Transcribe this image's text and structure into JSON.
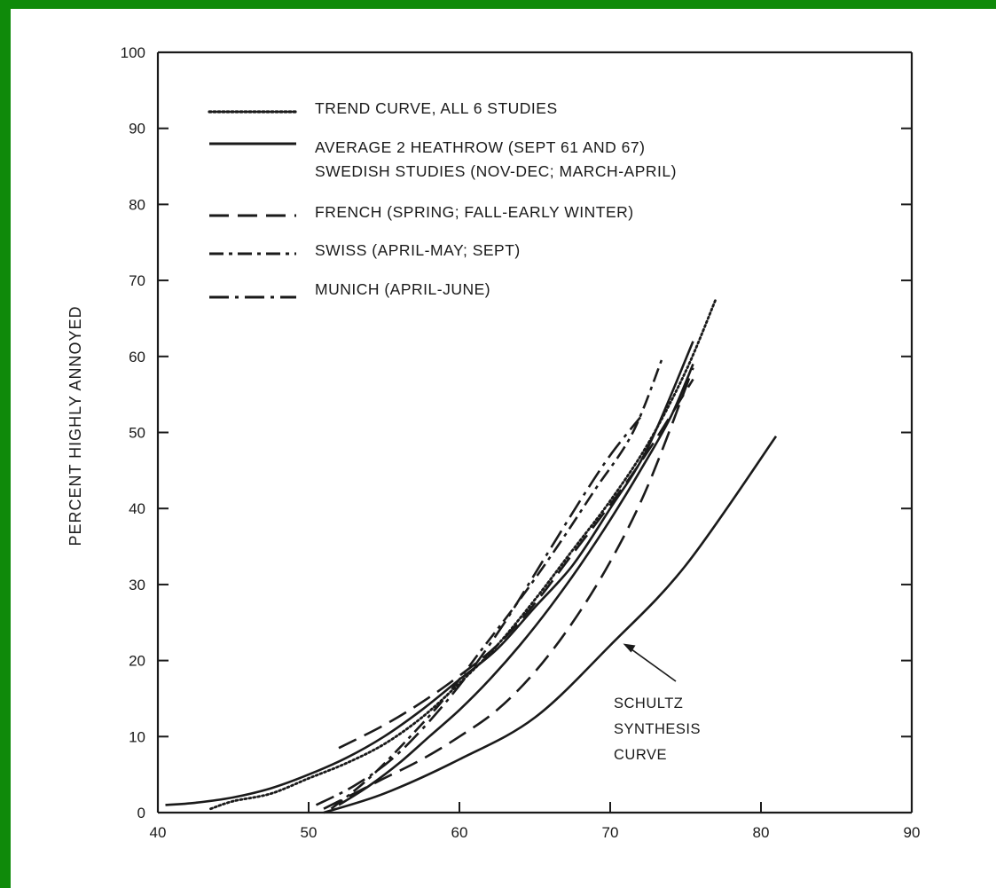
{
  "chart_data": {
    "type": "line",
    "title": "",
    "xlabel": "",
    "ylabel": "PERCENT HIGHLY ANNOYED",
    "xlim": [
      40,
      90
    ],
    "ylim": [
      0,
      100
    ],
    "x_ticks": [
      40,
      50,
      60,
      70,
      80,
      90
    ],
    "y_ticks": [
      0,
      10,
      20,
      30,
      40,
      50,
      60,
      70,
      80,
      90,
      100
    ],
    "grid": false,
    "legend_position": "top-left",
    "legend": [
      {
        "style": "dotted",
        "lines": [
          "TREND CURVE, ALL 6 STUDIES"
        ]
      },
      {
        "style": "solid",
        "lines": [
          "AVERAGE 2 HEATHROW (SEPT 61 AND 67)",
          "SWEDISH STUDIES (NOV-DEC; MARCH-APRIL)"
        ]
      },
      {
        "style": "dashed",
        "lines": [
          "FRENCH (SPRING; FALL-EARLY WINTER)"
        ]
      },
      {
        "style": "dashdot2",
        "lines": [
          "SWISS (APRIL-MAY; SEPT)"
        ]
      },
      {
        "style": "dashdot",
        "lines": [
          "MUNICH (APRIL-JUNE)"
        ]
      }
    ],
    "series": [
      {
        "style": "dotted",
        "x": [
          43.5,
          45,
          47.5,
          50,
          52.5,
          55,
          57.5,
          60,
          62.5,
          65,
          67.5,
          70,
          72.5,
          75,
          77
        ],
        "y": [
          0.5,
          1.5,
          2.5,
          4.5,
          6.5,
          9,
          12.5,
          17,
          22,
          28,
          34.5,
          41,
          48.5,
          58,
          67.5
        ]
      },
      {
        "style": "solid",
        "x": [
          40.5,
          42.5,
          45,
          47.5,
          50,
          52.5,
          55,
          57.5,
          60,
          62.5,
          65,
          67.5,
          70,
          72.5,
          75.5
        ],
        "y": [
          1,
          1.3,
          2,
          3.2,
          5,
          7.2,
          10,
          13.5,
          17.5,
          21.5,
          27,
          32.5,
          40,
          48,
          62
        ]
      },
      {
        "style": "solid",
        "x": [
          52,
          54,
          56,
          58,
          60,
          62,
          64,
          66,
          68,
          70,
          72,
          74,
          75.5
        ],
        "y": [
          1,
          3.5,
          6.5,
          10,
          13.5,
          17.5,
          22,
          27,
          32.5,
          38.5,
          45,
          52,
          59
        ]
      },
      {
        "style": "dashed",
        "x": [
          52,
          55,
          57.5,
          60,
          62.5,
          65,
          67.5,
          70,
          72.5,
          75.5
        ],
        "y": [
          8.5,
          11.5,
          14.5,
          18,
          22,
          27.5,
          34,
          40.5,
          47.5,
          57
        ]
      },
      {
        "style": "dashed",
        "x": [
          51,
          53,
          55,
          57.5,
          60,
          62.5,
          65,
          67.5,
          70,
          72.5,
          75.5
        ],
        "y": [
          0.5,
          2.5,
          4.5,
          7,
          10,
          13.5,
          18.5,
          25,
          33,
          43,
          58.5
        ]
      },
      {
        "style": "dashdot2",
        "x": [
          51.5,
          54,
          56.5,
          59,
          61.5,
          64,
          66.5,
          69,
          71.5,
          73.5
        ],
        "y": [
          0.5,
          4.5,
          9.5,
          15,
          21.5,
          28,
          35,
          42.5,
          50,
          60
        ]
      },
      {
        "style": "dashdot",
        "x": [
          50.5,
          53,
          55.5,
          58,
          60.5,
          63,
          65.5,
          68,
          70,
          72
        ],
        "y": [
          1,
          3.5,
          7,
          12,
          18,
          25,
          33,
          41,
          47,
          52
        ]
      },
      {
        "style": "solid",
        "x": [
          51,
          55,
          60,
          65,
          70,
          75,
          81
        ],
        "y": [
          0,
          2.5,
          7,
          12.5,
          22,
          32.5,
          49.5
        ]
      }
    ],
    "annotations": [
      {
        "lines": [
          "SCHULTZ",
          "SYNTHESIS",
          "CURVE"
        ],
        "arrow_to": [
          70.5,
          22
        ]
      }
    ]
  }
}
